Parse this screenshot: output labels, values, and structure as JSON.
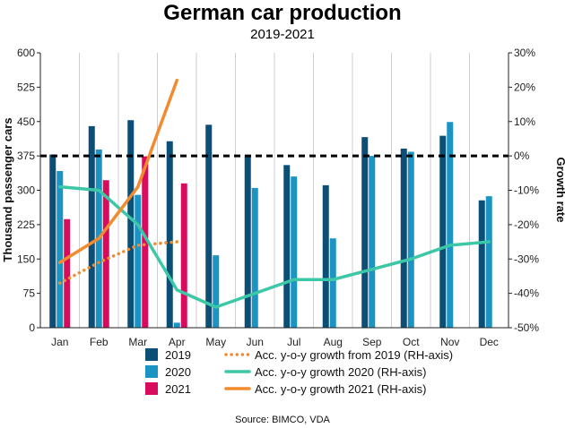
{
  "chart_data": {
    "type": "bar",
    "title": "German car production",
    "subtitle": "2019-2021",
    "ylabel": "Thousand passenger cars",
    "y2label": "Growth rate",
    "ylim": [
      0,
      600
    ],
    "y2lim": [
      -50,
      30
    ],
    "yticks": [
      "0",
      "75",
      "150",
      "225",
      "300",
      "375",
      "450",
      "525",
      "600"
    ],
    "y2ticks": [
      "-50%",
      "-40%",
      "-30%",
      "-20%",
      "-10%",
      "0%",
      "10%",
      "20%",
      "30%"
    ],
    "categories": [
      "Jan",
      "Feb",
      "Mar",
      "Apr",
      "May",
      "Jun",
      "Jul",
      "Aug",
      "Sep",
      "Oct",
      "Nov",
      "Dec"
    ],
    "series": [
      {
        "name": "2019",
        "type": "bar",
        "color": "#0b4f76",
        "values": [
          378,
          440,
          453,
          407,
          443,
          376,
          355,
          311,
          416,
          391,
          419,
          278
        ]
      },
      {
        "name": "2020",
        "type": "bar",
        "color": "#1b94c4",
        "values": [
          342,
          389,
          290,
          11,
          158,
          305,
          330,
          195,
          375,
          384,
          449,
          287
        ]
      },
      {
        "name": "2021",
        "type": "bar",
        "color": "#d90b5c",
        "values": [
          237,
          322,
          374,
          315,
          null,
          null,
          null,
          null,
          null,
          null,
          null,
          null
        ]
      },
      {
        "name": "Acc. y-o-y growth from 2019 (RH-axis)",
        "type": "line",
        "axis": "right",
        "style": "dotted",
        "color": "#f28a2f",
        "values": [
          -37,
          -31,
          -26,
          -25,
          null,
          null,
          null,
          null,
          null,
          null,
          null,
          null
        ]
      },
      {
        "name": "Acc. y-o-y growth 2020 (RH-axis)",
        "type": "line",
        "axis": "right",
        "style": "solid",
        "color": "#3cc7a6",
        "values": [
          -9,
          -10,
          -20,
          -39,
          -44,
          -40,
          -36,
          -36,
          -33,
          -30,
          -26,
          -25
        ]
      },
      {
        "name": "Acc. y-o-y growth 2021 (RH-axis)",
        "type": "line",
        "axis": "right",
        "style": "solid",
        "color": "#f28a2f",
        "values": [
          -31,
          -24,
          -9,
          22,
          null,
          null,
          null,
          null,
          null,
          null,
          null,
          null
        ]
      }
    ],
    "reference_line": {
      "axis": "right",
      "value": 0,
      "style": "dashed",
      "color": "#000000"
    },
    "grid": "vertical",
    "legend_position": "bottom",
    "source": "Source: BIMCO, VDA"
  }
}
